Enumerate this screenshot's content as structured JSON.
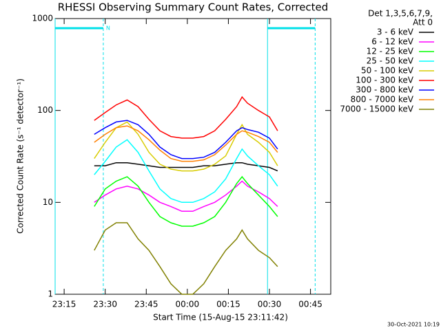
{
  "chart_data": {
    "type": "line",
    "title": "RHESSI Observing Summary Count Rates, Corrected",
    "x_label": "Start Time (15-Aug-15 23:11:42)",
    "y_label": "Corrected Count Rate (s⁻¹ detector⁻¹)",
    "legend_header": [
      "Det 1,3,5,6,7,9,",
      "Att 0"
    ],
    "footer": "30-Oct-2021 10:19",
    "log_y": true,
    "legend_position": "right",
    "xlim": [
      11.7,
      112.4
    ],
    "xticks": [
      {
        "value": 15,
        "label": "23:15"
      },
      {
        "value": 30,
        "label": "23:30"
      },
      {
        "value": 45,
        "label": "23:45"
      },
      {
        "value": 60,
        "label": "00:00"
      },
      {
        "value": 75,
        "label": "00:15"
      },
      {
        "value": 90,
        "label": "00:30"
      },
      {
        "value": 105,
        "label": "00:45"
      }
    ],
    "ylim": [
      1,
      1000
    ],
    "yticks": [
      1,
      10,
      100,
      1000
    ],
    "night_intervals": [
      {
        "start": 11.7,
        "end": 29.3,
        "label": "N"
      },
      {
        "start": 89.3,
        "end": 106.7
      }
    ],
    "night_color": "#00e0e8",
    "x": [
      26,
      30,
      34,
      38,
      42,
      46,
      50,
      54,
      58,
      62,
      66,
      70,
      74,
      78,
      80,
      82,
      86,
      90,
      93
    ],
    "series": [
      {
        "name": "3 - 6 keV",
        "color": "#000000",
        "values": [
          25,
          25,
          27,
          27,
          26,
          25,
          24,
          24,
          24,
          24,
          25,
          25,
          26,
          27,
          27,
          26,
          25,
          24,
          22
        ]
      },
      {
        "name": "6 - 12 keV",
        "color": "#ff00ff",
        "values": [
          10,
          12,
          14,
          15,
          14,
          12,
          10,
          9,
          8,
          8,
          9,
          10,
          12,
          15,
          17,
          15,
          13,
          11,
          9
        ]
      },
      {
        "name": "12 - 25 keV",
        "color": "#00ff00",
        "values": [
          9,
          14,
          17,
          19,
          15,
          10,
          7,
          6,
          5.5,
          5.5,
          6,
          7,
          10,
          16,
          19,
          16,
          12,
          9,
          7
        ]
      },
      {
        "name": "25 - 50 keV",
        "color": "#00ffff",
        "values": [
          20,
          28,
          40,
          48,
          35,
          22,
          14,
          11,
          10,
          10,
          11,
          13,
          18,
          30,
          38,
          32,
          25,
          20,
          15
        ]
      },
      {
        "name": "50 - 100 keV",
        "color": "#d8cc00",
        "values": [
          30,
          45,
          65,
          75,
          55,
          35,
          26,
          23,
          22,
          22,
          23,
          26,
          32,
          55,
          70,
          55,
          45,
          35,
          25
        ]
      },
      {
        "name": "100 - 300 keV",
        "color": "#ff0000",
        "values": [
          78,
          95,
          115,
          130,
          110,
          80,
          60,
          52,
          50,
          50,
          52,
          60,
          80,
          110,
          140,
          120,
          100,
          85,
          60
        ]
      },
      {
        "name": "300 - 800 keV",
        "color": "#0000ff",
        "values": [
          55,
          65,
          75,
          78,
          70,
          55,
          40,
          33,
          30,
          30,
          31,
          35,
          45,
          60,
          65,
          62,
          58,
          50,
          38
        ]
      },
      {
        "name": "800 - 7000 keV",
        "color": "#ff8000",
        "values": [
          45,
          55,
          65,
          68,
          60,
          48,
          37,
          30,
          28,
          28,
          29,
          33,
          42,
          55,
          60,
          58,
          52,
          45,
          35
        ]
      },
      {
        "name": "7000 - 15000 keV",
        "color": "#808000",
        "values": [
          3,
          5,
          6,
          6,
          4,
          3,
          2,
          1.3,
          1,
          1,
          1.3,
          2,
          3,
          4,
          5,
          4,
          3,
          2.5,
          2
        ]
      }
    ]
  }
}
